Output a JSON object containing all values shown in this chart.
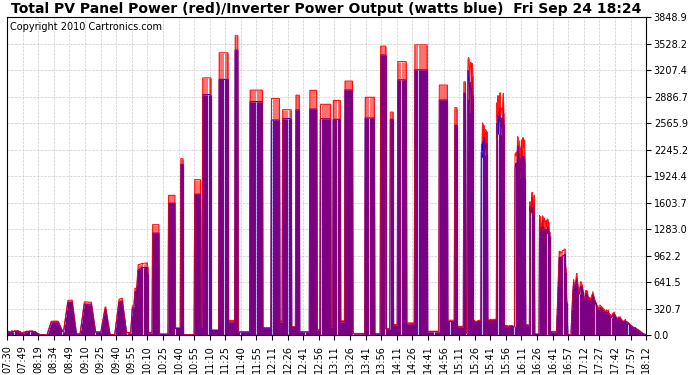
{
  "title": "Total PV Panel Power (red)/Inverter Power Output (watts blue)  Fri Sep 24 18:24",
  "copyright": "Copyright 2010 Cartronics.com",
  "y_ticks": [
    0.0,
    320.7,
    641.5,
    962.2,
    1283.0,
    1603.7,
    1924.4,
    2245.2,
    2565.9,
    2886.7,
    3207.4,
    3528.2,
    3848.9
  ],
  "x_labels": [
    "07:30",
    "07:49",
    "08:19",
    "08:34",
    "08:49",
    "09:10",
    "09:25",
    "09:40",
    "09:55",
    "10:10",
    "10:25",
    "10:40",
    "10:55",
    "11:10",
    "11:25",
    "11:40",
    "11:55",
    "12:11",
    "12:26",
    "12:41",
    "12:56",
    "13:11",
    "13:26",
    "13:41",
    "13:56",
    "14:11",
    "14:26",
    "14:41",
    "14:56",
    "15:11",
    "15:26",
    "15:41",
    "15:56",
    "16:11",
    "16:26",
    "16:41",
    "16:57",
    "17:12",
    "17:27",
    "17:42",
    "17:57",
    "18:12"
  ],
  "bg_color": "#ffffff",
  "grid_color": "#aaaaaa",
  "pv_color": "#ff0000",
  "inv_color": "#0000ff",
  "title_fontsize": 10,
  "copyright_fontsize": 7,
  "tick_fontsize": 7,
  "ylim_max": 3848.9,
  "figwidth": 6.9,
  "figheight": 3.75,
  "dpi": 100
}
